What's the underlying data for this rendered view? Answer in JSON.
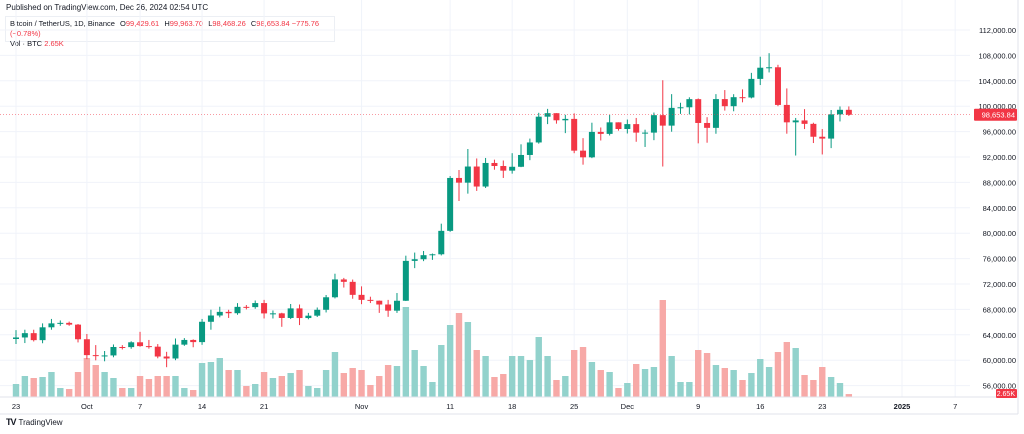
{
  "header": {
    "published": "Published on TradingView.com, Dec 26, 2024 02:54 UTC"
  },
  "legend": {
    "symbol": "Bitcoin / TetherUS, 1D, Binance",
    "o_label": "O",
    "o": "99,429.61",
    "h_label": "H",
    "h": "99,963.70",
    "l_label": "L",
    "l": "98,468.26",
    "c_label": "C",
    "c": "98,653.84",
    "change": "−775.76 (−0.78%)",
    "vol_label": "Vol · BTC",
    "vol": "2.65K"
  },
  "footer": {
    "brand": "TradingView",
    "logo_text": "TV"
  },
  "chart_data": {
    "type": "candlestick",
    "colors": {
      "up": "#089981",
      "down": "#f23645",
      "vol_up": "#92d2cc",
      "vol_down": "#f7a9a7",
      "grid": "#f0f3fa"
    },
    "y_ticks": [
      56000,
      60000,
      64000,
      68000,
      72000,
      76000,
      80000,
      84000,
      88000,
      92000,
      96000,
      100000,
      104000,
      108000,
      112000
    ],
    "y_tick_labels": [
      "56,000.00",
      "60,000.00",
      "64,000.00",
      "68,000.00",
      "72,000.00",
      "76,000.00",
      "80,000.00",
      "84,000.00",
      "88,000.00",
      "92,000.00",
      "96,000.00",
      "100,000.00",
      "104,000.00",
      "108,000.00",
      "112,000.00"
    ],
    "ylim": [
      55000,
      114000
    ],
    "last_price": 98653.84,
    "last_price_label": "98,653.84",
    "last_volume_label": "2.65K",
    "x_ticks": [
      {
        "date": "2024-09-23",
        "label": "23"
      },
      {
        "date": "2024-10-01",
        "label": "Oct"
      },
      {
        "date": "2024-10-07",
        "label": "7"
      },
      {
        "date": "2024-10-14",
        "label": "14"
      },
      {
        "date": "2024-10-21",
        "label": "21"
      },
      {
        "date": "2024-11-01",
        "label": "Nov"
      },
      {
        "date": "2024-11-11",
        "label": "11"
      },
      {
        "date": "2024-11-18",
        "label": "18"
      },
      {
        "date": "2024-11-25",
        "label": "25"
      },
      {
        "date": "2024-12-01",
        "label": "Dec"
      },
      {
        "date": "2024-12-09",
        "label": "9"
      },
      {
        "date": "2024-12-16",
        "label": "16"
      },
      {
        "date": "2024-12-23",
        "label": "23"
      },
      {
        "date": "2025-01-01",
        "label": "2025"
      },
      {
        "date": "2025-01-07",
        "label": "7"
      }
    ],
    "start_date": "2024-09-23",
    "volume_unit": "K BTC",
    "candles": [
      [
        63340,
        64740,
        62550,
        63580,
        11.7
      ],
      [
        63580,
        64800,
        62700,
        64260,
        18.9
      ],
      [
        64260,
        64800,
        62950,
        63160,
        17.1
      ],
      [
        63160,
        65800,
        62670,
        65180,
        18
      ],
      [
        65180,
        66500,
        64800,
        65800,
        22.5
      ],
      [
        65800,
        66260,
        65420,
        65880,
        8.1
      ],
      [
        65880,
        66080,
        65420,
        65600,
        7.2
      ],
      [
        65600,
        65700,
        62800,
        63300,
        22.5
      ],
      [
        63300,
        64130,
        60160,
        60800,
        35.1
      ],
      [
        60800,
        62380,
        59980,
        60650,
        28.8
      ],
      [
        60650,
        61450,
        59830,
        60750,
        22.5
      ],
      [
        60750,
        62480,
        60460,
        62080,
        17.1
      ],
      [
        62080,
        62370,
        61690,
        62060,
        8.1
      ],
      [
        62060,
        62980,
        61800,
        62820,
        8.1
      ],
      [
        62820,
        64470,
        62120,
        62220,
        18.9
      ],
      [
        62220,
        63190,
        61820,
        62130,
        16.2
      ],
      [
        62130,
        62540,
        60300,
        60580,
        18.9
      ],
      [
        60580,
        61320,
        58900,
        60270,
        18.9
      ],
      [
        60270,
        63420,
        60000,
        62450,
        18.9
      ],
      [
        62450,
        63480,
        62260,
        63190,
        8.1
      ],
      [
        63190,
        63280,
        62040,
        62850,
        6.3
      ],
      [
        62850,
        66500,
        62420,
        66050,
        30.6
      ],
      [
        66050,
        67950,
        64800,
        67040,
        31.5
      ],
      [
        67040,
        68420,
        66750,
        67610,
        35.1
      ],
      [
        67610,
        67940,
        66650,
        67400,
        24.3
      ],
      [
        67400,
        68980,
        67150,
        68400,
        24.3
      ],
      [
        68400,
        68690,
        68000,
        68360,
        9.9
      ],
      [
        68360,
        69400,
        68100,
        69000,
        11.7
      ],
      [
        69000,
        69500,
        66570,
        67370,
        22.5
      ],
      [
        67370,
        67830,
        66570,
        67380,
        17.1
      ],
      [
        67380,
        67470,
        65260,
        66650,
        18.9
      ],
      [
        66650,
        68850,
        66480,
        68160,
        21.6
      ],
      [
        68160,
        68770,
        65530,
        66640,
        24.3
      ],
      [
        66640,
        67450,
        66440,
        67010,
        9.9
      ],
      [
        67010,
        68300,
        66800,
        67940,
        8.1
      ],
      [
        67940,
        70270,
        67520,
        69910,
        24.3
      ],
      [
        69910,
        73620,
        69730,
        72720,
        40.5
      ],
      [
        72720,
        72960,
        71440,
        72340,
        21.6
      ],
      [
        72340,
        72700,
        69680,
        70290,
        26.1
      ],
      [
        70290,
        71630,
        68820,
        69500,
        24.3
      ],
      [
        69500,
        70000,
        69000,
        69370,
        10.8
      ],
      [
        69370,
        69400,
        67450,
        68770,
        18.9
      ],
      [
        68770,
        69500,
        66830,
        67800,
        28.8
      ],
      [
        67800,
        70580,
        67450,
        69360,
        27.9
      ],
      [
        69360,
        76460,
        69320,
        75640,
        81
      ],
      [
        75640,
        76950,
        74500,
        75900,
        42.3
      ],
      [
        75900,
        77200,
        75600,
        76540,
        27.9
      ],
      [
        76540,
        76800,
        75800,
        76680,
        13.5
      ],
      [
        76680,
        81500,
        76500,
        80370,
        46.8
      ],
      [
        80370,
        89000,
        80220,
        88700,
        64.8
      ],
      [
        88700,
        89950,
        85070,
        87960,
        75.6
      ],
      [
        87960,
        93260,
        86230,
        90500,
        67.5
      ],
      [
        90500,
        91770,
        86660,
        87350,
        42.3
      ],
      [
        87350,
        91850,
        87120,
        91060,
        36.9
      ],
      [
        91060,
        91580,
        90000,
        90580,
        18
      ],
      [
        90580,
        91450,
        88700,
        89850,
        20.7
      ],
      [
        89850,
        92600,
        89380,
        90460,
        36.9
      ],
      [
        90460,
        94000,
        90400,
        92320,
        36.9
      ],
      [
        92320,
        94900,
        91500,
        94290,
        33.3
      ],
      [
        94290,
        98960,
        94100,
        98350,
        54
      ],
      [
        98350,
        99580,
        97180,
        98900,
        36.9
      ],
      [
        98900,
        98900,
        97250,
        97780,
        15.3
      ],
      [
        97780,
        98650,
        95760,
        98000,
        18.9
      ],
      [
        98000,
        98870,
        92600,
        93000,
        42.3
      ],
      [
        93000,
        94970,
        90790,
        91950,
        45
      ],
      [
        91950,
        97400,
        91820,
        95950,
        31.5
      ],
      [
        95950,
        96650,
        94600,
        95640,
        24.3
      ],
      [
        95640,
        98690,
        95390,
        97460,
        22.5
      ],
      [
        97460,
        97460,
        96150,
        96410,
        8.1
      ],
      [
        96410,
        97900,
        95700,
        97180,
        12.6
      ],
      [
        97180,
        98150,
        94400,
        95840,
        29.7
      ],
      [
        95840,
        96300,
        93580,
        95840,
        25.2
      ],
      [
        95840,
        99000,
        94650,
        98590,
        27
      ],
      [
        98590,
        104090,
        90500,
        96940,
        87.3
      ],
      [
        96940,
        101900,
        95980,
        99740,
        36.9
      ],
      [
        99740,
        100550,
        98800,
        99830,
        13.5
      ],
      [
        99830,
        101400,
        98700,
        101110,
        13.5
      ],
      [
        101110,
        101220,
        94150,
        97360,
        42.3
      ],
      [
        97360,
        98270,
        94250,
        96590,
        39.6
      ],
      [
        96590,
        101900,
        95660,
        101120,
        28.8
      ],
      [
        101120,
        102540,
        99310,
        100000,
        26.1
      ],
      [
        100000,
        101890,
        99200,
        101420,
        24.3
      ],
      [
        101420,
        102650,
        100610,
        101370,
        15.3
      ],
      [
        101370,
        105250,
        101230,
        104300,
        21.6
      ],
      [
        104300,
        107790,
        103330,
        106060,
        34.2
      ],
      [
        106060,
        108350,
        105320,
        106130,
        27
      ],
      [
        106130,
        106520,
        100000,
        100200,
        40.5
      ],
      [
        100200,
        102800,
        95670,
        97460,
        49.5
      ],
      [
        97460,
        98150,
        92230,
        97760,
        44.1
      ],
      [
        97760,
        99540,
        96400,
        97220,
        19.8
      ],
      [
        97220,
        97400,
        94200,
        95190,
        15.3
      ],
      [
        95190,
        96400,
        92400,
        94900,
        27
      ],
      [
        94900,
        99400,
        93400,
        98720,
        18
      ],
      [
        98720,
        99960,
        97600,
        99430,
        12.6
      ],
      [
        99429.61,
        99963.7,
        98468.26,
        98653.84,
        2.65
      ]
    ]
  }
}
